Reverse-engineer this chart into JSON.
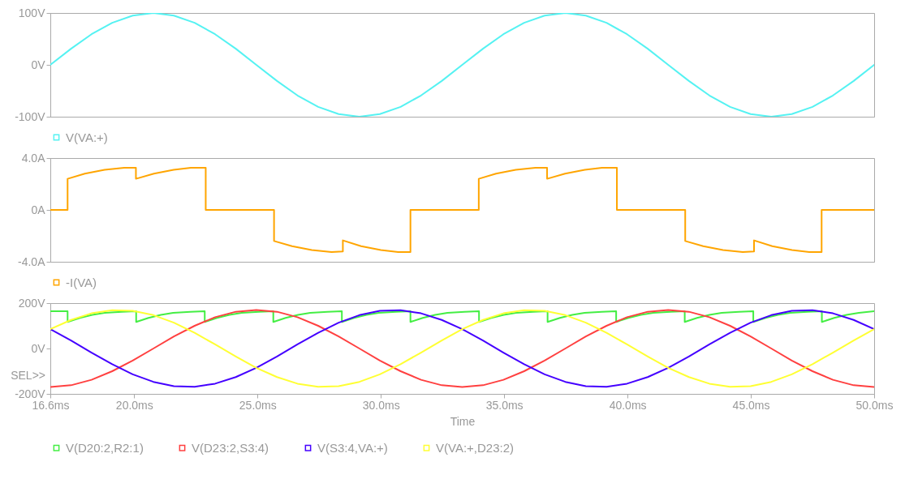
{
  "chart_data": [
    {
      "type": "line",
      "legend": "bottom",
      "tick_labels": "y",
      "xlim": [
        16.6,
        50
      ],
      "ylim": [
        -100,
        100
      ],
      "yticks": [
        {
          "value": -100,
          "label": "-100V"
        },
        {
          "value": 0,
          "label": "0V"
        },
        {
          "value": 100,
          "label": "100V"
        }
      ],
      "x": [
        16.6,
        17.44,
        18.27,
        19.11,
        19.94,
        20.78,
        21.61,
        22.45,
        23.28,
        24.12,
        24.95,
        25.79,
        26.62,
        27.46,
        28.29,
        29.13,
        29.96,
        30.8,
        31.63,
        32.47,
        33.3,
        34.14,
        34.97,
        35.81,
        36.64,
        37.48,
        38.31,
        39.15,
        39.98,
        40.82,
        41.65,
        42.49,
        43.32,
        44.16,
        44.99,
        45.83,
        46.66,
        47.5,
        48.33,
        49.17,
        50
      ],
      "series": [
        {
          "name": "V(VA:+)",
          "color": "#55f2f2",
          "values": [
            0,
            31,
            59,
            81,
            95,
            100,
            95,
            81,
            59,
            31,
            0,
            -31,
            -59,
            -81,
            -95,
            -100,
            -95,
            -81,
            -59,
            -31,
            0,
            31,
            59,
            81,
            95,
            100,
            95,
            81,
            59,
            31,
            0,
            -31,
            -59,
            -81,
            -95,
            -100,
            -95,
            -81,
            -59,
            -31,
            0
          ]
        }
      ]
    },
    {
      "type": "line",
      "legend": "bottom",
      "tick_labels": "y",
      "xlim": [
        16.6,
        50
      ],
      "ylim": [
        -4,
        4
      ],
      "yticks": [
        {
          "value": -4,
          "label": "-4.0A"
        },
        {
          "value": 0,
          "label": "0A"
        },
        {
          "value": 4,
          "label": "4.0A"
        }
      ],
      "series": [
        {
          "name": "-I(VA)",
          "color": "#ffa500",
          "x": [
            16.6,
            17.3,
            17.3,
            18.0,
            18.8,
            19.6,
            20.07,
            20.07,
            20.8,
            21.6,
            22.3,
            22.9,
            22.9,
            25.67,
            25.67,
            26.4,
            27.2,
            28.0,
            28.46,
            28.46,
            29.2,
            30.0,
            30.7,
            31.2,
            31.2,
            33.97,
            33.97,
            34.67,
            35.47,
            36.27,
            36.74,
            36.74,
            37.47,
            38.27,
            38.97,
            39.57,
            39.57,
            42.34,
            42.34,
            43.07,
            43.87,
            44.67,
            45.13,
            45.13,
            45.87,
            46.67,
            47.37,
            47.87,
            47.87,
            50
          ],
          "values": [
            0,
            0,
            2.4,
            2.8,
            3.1,
            3.25,
            3.25,
            2.4,
            2.8,
            3.1,
            3.25,
            3.25,
            0,
            0,
            -2.4,
            -2.8,
            -3.1,
            -3.25,
            -3.2,
            -2.35,
            -2.8,
            -3.1,
            -3.25,
            -3.25,
            0,
            0,
            2.4,
            2.8,
            3.1,
            3.25,
            3.25,
            2.4,
            2.8,
            3.1,
            3.25,
            3.25,
            0,
            0,
            -2.4,
            -2.8,
            -3.1,
            -3.25,
            -3.2,
            -2.35,
            -2.8,
            -3.1,
            -3.25,
            -3.25,
            0,
            0
          ]
        }
      ]
    },
    {
      "type": "line",
      "legend": "bottom",
      "xlabel": "Time",
      "annotations": [
        "SEL>>"
      ],
      "xlim": [
        16.6,
        50
      ],
      "xticks": [
        {
          "value": 16.6,
          "label": "16.6ms"
        },
        {
          "value": 20,
          "label": "20.0ms"
        },
        {
          "value": 25,
          "label": "25.0ms"
        },
        {
          "value": 30,
          "label": "30.0ms"
        },
        {
          "value": 35,
          "label": "35.0ms"
        },
        {
          "value": 40,
          "label": "40.0ms"
        },
        {
          "value": 45,
          "label": "45.0ms"
        },
        {
          "value": 50,
          "label": "50.0ms"
        }
      ],
      "ylim": [
        -200,
        200
      ],
      "yticks": [
        {
          "value": -200,
          "label": "-200V"
        },
        {
          "value": 0,
          "label": "0V"
        },
        {
          "value": 200,
          "label": "200V"
        }
      ],
      "x": [
        16.6,
        17.44,
        18.27,
        19.11,
        19.94,
        20.78,
        21.61,
        22.45,
        23.28,
        24.12,
        24.95,
        25.79,
        26.62,
        27.46,
        28.29,
        29.13,
        29.96,
        30.8,
        31.63,
        32.47,
        33.3,
        34.14,
        34.97,
        35.81,
        36.64,
        37.48,
        38.31,
        39.15,
        39.98,
        40.82,
        41.65,
        42.49,
        43.32,
        44.16,
        44.99,
        45.83,
        46.66,
        47.5,
        48.33,
        49.17,
        50
      ],
      "series": [
        {
          "name": "V(D20:2,R2:1)",
          "color": "#44ee44",
          "x": [
            16.6,
            17.3,
            17.3,
            17.8,
            18.3,
            18.8,
            19.5,
            20.08,
            20.08,
            20.58,
            21.08,
            21.58,
            22.28,
            22.86,
            22.86,
            23.36,
            23.86,
            24.36,
            25.06,
            25.64,
            25.64,
            26.14,
            26.64,
            27.14,
            27.84,
            28.42,
            28.42,
            28.92,
            29.42,
            29.92,
            30.62,
            31.2,
            31.2,
            31.7,
            32.2,
            32.7,
            33.4,
            33.98,
            33.98,
            34.48,
            34.98,
            35.48,
            36.18,
            36.76,
            36.76,
            37.26,
            37.76,
            38.26,
            38.96,
            39.54,
            39.54,
            40.04,
            40.54,
            41.04,
            41.74,
            42.32,
            42.32,
            42.82,
            43.32,
            43.82,
            44.52,
            45.1,
            45.1,
            45.6,
            46.1,
            46.6,
            47.3,
            47.88,
            47.88,
            48.38,
            48.88,
            49.38,
            50
          ],
          "values": [
            164,
            164,
            117,
            135,
            148,
            157,
            162,
            164,
            117,
            135,
            148,
            157,
            162,
            164,
            117,
            135,
            148,
            157,
            162,
            164,
            117,
            135,
            148,
            157,
            162,
            164,
            117,
            135,
            148,
            157,
            162,
            164,
            117,
            135,
            148,
            157,
            162,
            164,
            117,
            135,
            148,
            157,
            162,
            164,
            117,
            135,
            148,
            157,
            162,
            164,
            117,
            135,
            148,
            157,
            162,
            164,
            117,
            135,
            148,
            157,
            162,
            164,
            117,
            135,
            148,
            157,
            162,
            164,
            117,
            135,
            148,
            157,
            164
          ]
        },
        {
          "name": "V(D23:2,S3:4)",
          "color": "#ff4040",
          "values": [
            -170,
            -162,
            -138,
            -100,
            -53,
            0,
            53,
            100,
            138,
            162,
            170,
            162,
            138,
            100,
            53,
            0,
            -53,
            -100,
            -138,
            -162,
            -170,
            -162,
            -138,
            -100,
            -53,
            0,
            53,
            100,
            138,
            162,
            170,
            162,
            138,
            100,
            53,
            0,
            -53,
            -100,
            -138,
            -162,
            -170
          ]
        },
        {
          "name": "V(S3:4,VA:+)",
          "color": "#4400ff",
          "values": [
            85,
            35,
            -18,
            -69,
            -114,
            -147,
            -166,
            -169,
            -155,
            -126,
            -85,
            -35,
            18,
            69,
            114,
            147,
            166,
            169,
            155,
            126,
            85,
            35,
            -18,
            -69,
            -114,
            -147,
            -166,
            -169,
            -155,
            -126,
            -85,
            -35,
            18,
            69,
            114,
            147,
            166,
            169,
            155,
            126,
            85
          ]
        },
        {
          "name": "V(VA:+,D23:2)",
          "color": "#ffff33",
          "values": [
            85,
            126,
            155,
            169,
            166,
            147,
            114,
            69,
            18,
            -35,
            -85,
            -126,
            -155,
            -169,
            -166,
            -147,
            -114,
            -69,
            -18,
            35,
            85,
            126,
            155,
            169,
            166,
            147,
            114,
            69,
            18,
            -35,
            -85,
            -126,
            -155,
            -169,
            -166,
            -147,
            -114,
            -69,
            -18,
            35,
            85
          ]
        }
      ]
    }
  ]
}
